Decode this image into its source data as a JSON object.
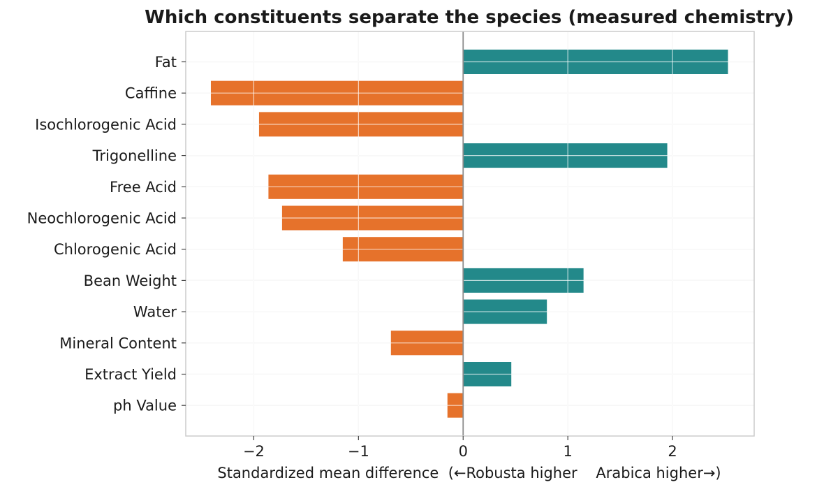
{
  "chart_data": {
    "type": "bar",
    "orientation": "horizontal",
    "title": "Which constituents separate the species (measured chemistry)",
    "xlabel": "Standardized mean difference  (←Robusta higher    Arabica higher→)",
    "ylabel": "",
    "xlim": [
      -2.65,
      2.78
    ],
    "xticks": [
      -2,
      -1,
      0,
      1,
      2
    ],
    "xtick_labels": [
      "−2",
      "−1",
      "0",
      "1",
      "2"
    ],
    "grid": true,
    "legend": "none",
    "categories": [
      "Fat",
      "Caffine",
      "Isochlorogenic Acid",
      "Trigonelline",
      "Free Acid",
      "Neochlorogenic Acid",
      "Chlorogenic Acid",
      "Bean Weight",
      "Water",
      "Mineral Content",
      "Extract Yield",
      "ph Value"
    ],
    "values": [
      2.53,
      -2.41,
      -1.95,
      1.95,
      -1.86,
      -1.73,
      -1.15,
      1.15,
      0.8,
      -0.69,
      0.46,
      -0.15
    ],
    "colors": {
      "positive": "#23898a",
      "negative": "#e6722b",
      "zero_line": "#8c8c8c",
      "grid": "#e6e6e6",
      "frame": "#cccccc"
    }
  }
}
